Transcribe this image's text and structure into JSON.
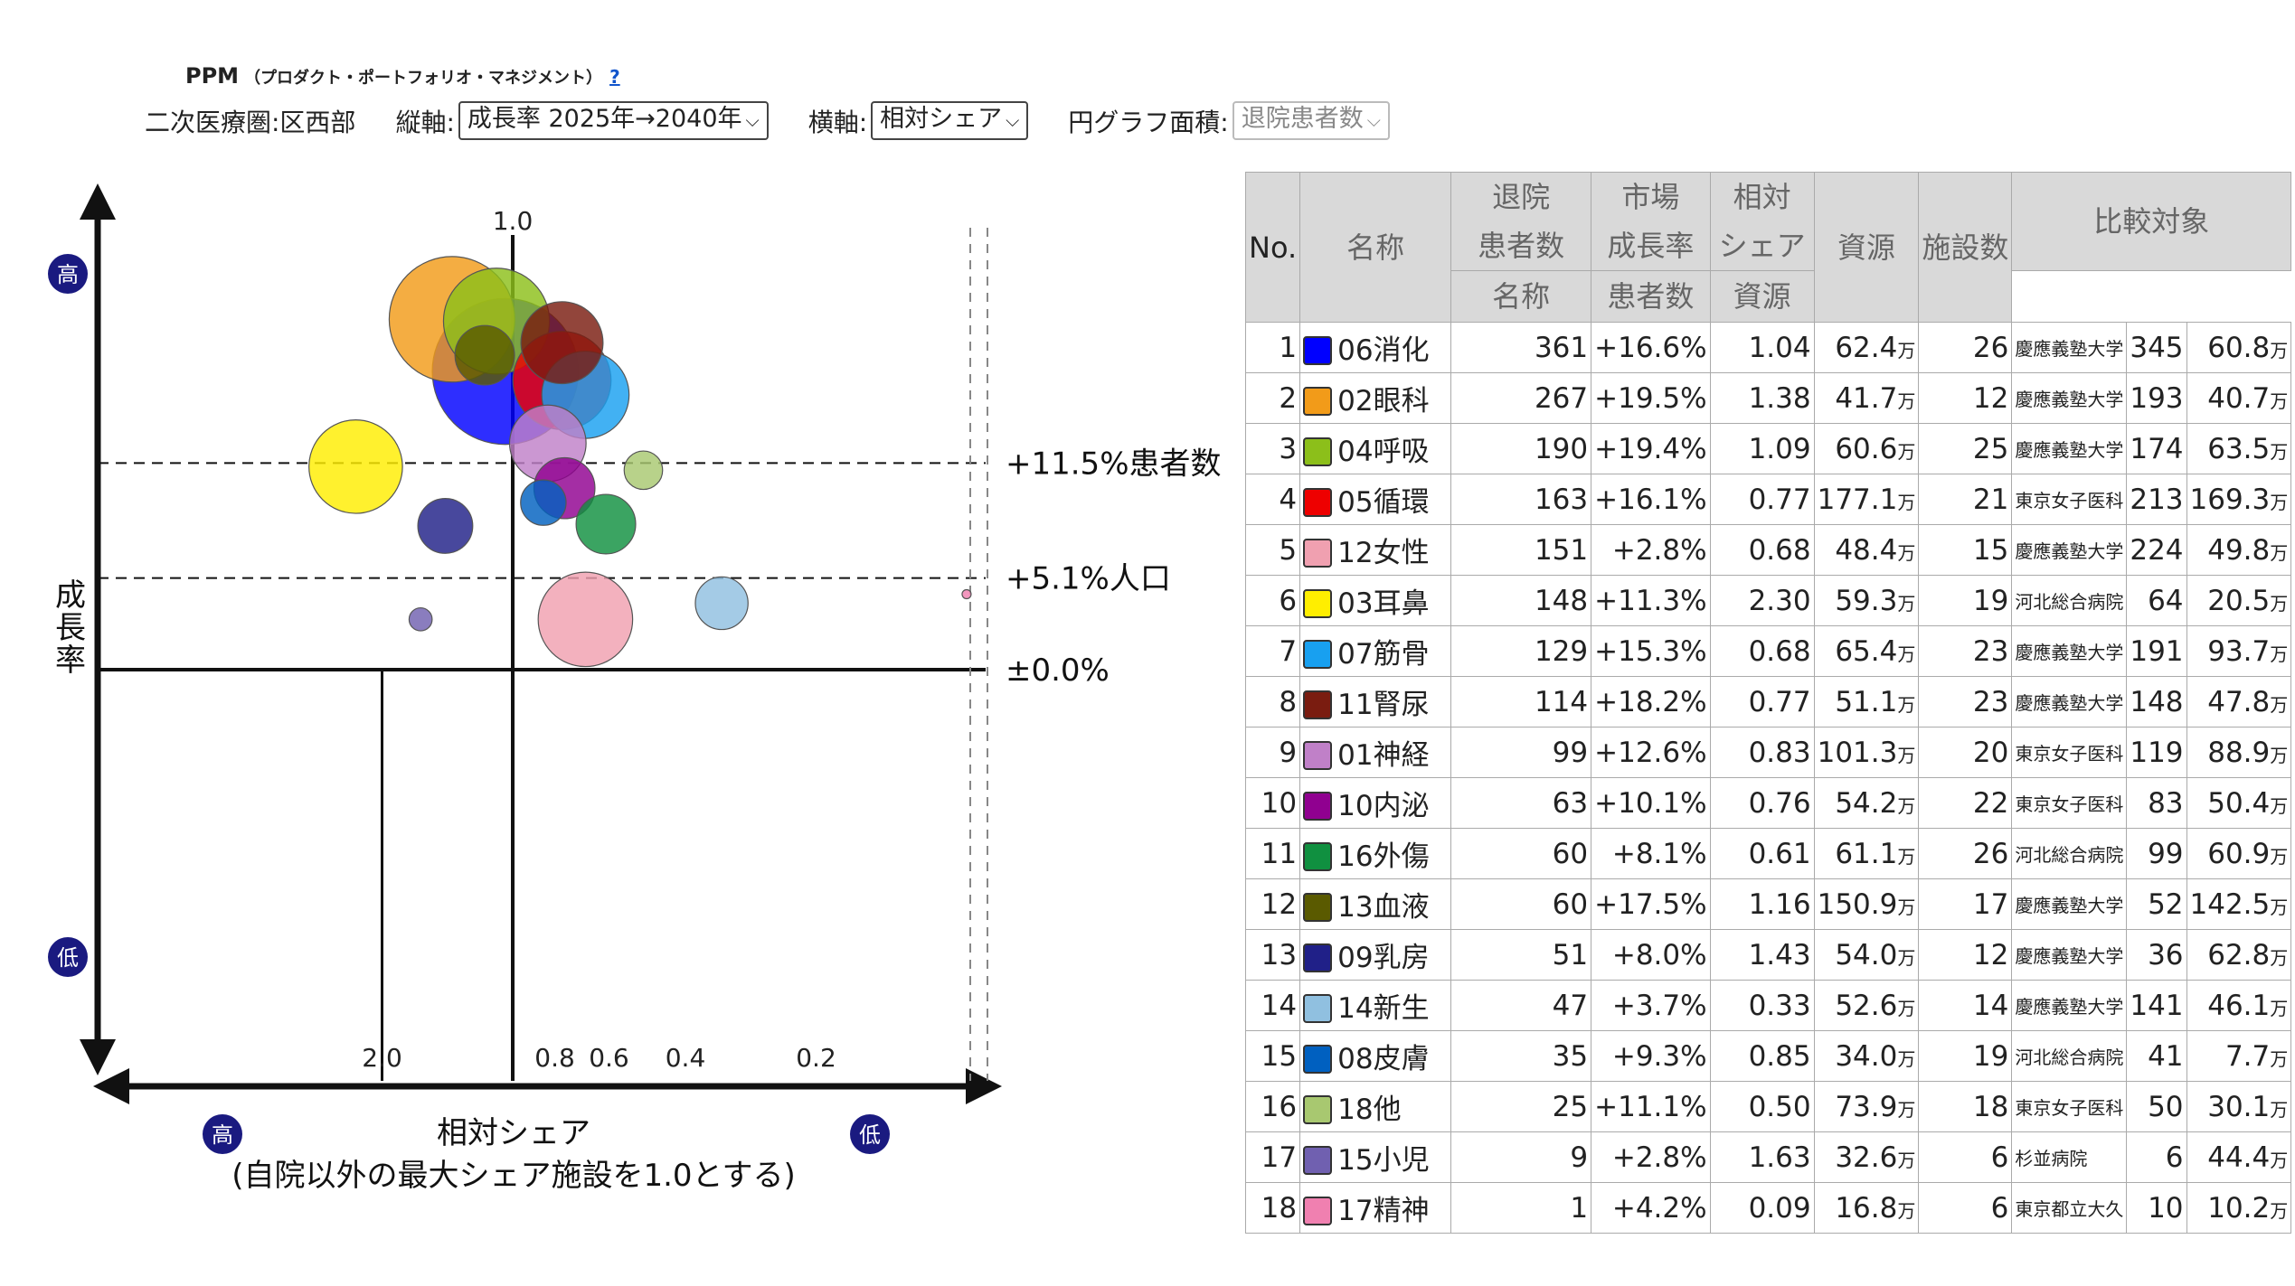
{
  "header": {
    "title": "PPM",
    "subtitle": "（プロダクト・ポートフォリオ・マネジメント）",
    "help_label": "?"
  },
  "controls": {
    "area_label": "二次医療圏:区西部",
    "y_axis_label": "縦軸:",
    "y_axis_value": "成長率 2025年→2040年",
    "x_axis_label": "横軸:",
    "x_axis_value": "相対シェア",
    "size_label": "円グラフ面積:",
    "size_value": "退院患者数"
  },
  "chart_data": {
    "type": "scatter",
    "ylabel": "成長率",
    "xlabel": "相対シェア",
    "xlabel_note": "(自院以外の最大シェア施設を1.0とする)",
    "x_direction": "reversed",
    "x_ticks": [
      "1.0",
      "2.0",
      "0.8",
      "0.6",
      "0.4",
      "0.2"
    ],
    "y_high_label": "高",
    "y_low_label": "低",
    "x_high_label": "高",
    "x_low_label": "低",
    "reference_lines": [
      {
        "label": "+11.5%患者数",
        "y": 11.5
      },
      {
        "label": "+5.1%人口",
        "y": 5.1
      },
      {
        "label": "±0.0%",
        "y": 0.0
      }
    ],
    "bubbles": [
      {
        "name": "06消化",
        "x": 1.04,
        "y": 16.6,
        "size": 361,
        "color": "#0000ff"
      },
      {
        "name": "02眼科",
        "x": 1.38,
        "y": 19.5,
        "size": 267,
        "color": "#f29b19"
      },
      {
        "name": "04呼吸",
        "x": 1.09,
        "y": 19.4,
        "size": 190,
        "color": "#8cbf1a"
      },
      {
        "name": "05循環",
        "x": 0.77,
        "y": 16.1,
        "size": 163,
        "color": "#ee0000"
      },
      {
        "name": "12女性",
        "x": 0.68,
        "y": 2.8,
        "size": 151,
        "color": "#f0a0b0"
      },
      {
        "name": "03耳鼻",
        "x": 2.3,
        "y": 11.3,
        "size": 148,
        "color": "#ffee00"
      },
      {
        "name": "07筋骨",
        "x": 0.68,
        "y": 15.3,
        "size": 129,
        "color": "#18a0f0"
      },
      {
        "name": "11腎尿",
        "x": 0.77,
        "y": 18.2,
        "size": 114,
        "color": "#7a1c10"
      },
      {
        "name": "01神経",
        "x": 0.83,
        "y": 12.6,
        "size": 99,
        "color": "#c080c8"
      },
      {
        "name": "10内泌",
        "x": 0.76,
        "y": 10.1,
        "size": 63,
        "color": "#900090"
      },
      {
        "name": "16外傷",
        "x": 0.61,
        "y": 8.1,
        "size": 60,
        "color": "#109040"
      },
      {
        "name": "13血液",
        "x": 1.16,
        "y": 17.5,
        "size": 60,
        "color": "#5a5a00"
      },
      {
        "name": "09乳房",
        "x": 1.43,
        "y": 8.0,
        "size": 51,
        "color": "#202088"
      },
      {
        "name": "14新生",
        "x": 0.33,
        "y": 3.7,
        "size": 47,
        "color": "#90c0e0"
      },
      {
        "name": "08皮膚",
        "x": 0.85,
        "y": 9.3,
        "size": 35,
        "color": "#0060c0"
      },
      {
        "name": "18他",
        "x": 0.5,
        "y": 11.1,
        "size": 25,
        "color": "#a8c870"
      },
      {
        "name": "15小児",
        "x": 1.63,
        "y": 2.8,
        "size": 9,
        "color": "#7060b0"
      },
      {
        "name": "17精神",
        "x": 0.09,
        "y": 4.2,
        "size": 1,
        "color": "#f080b0"
      }
    ]
  },
  "table": {
    "headers": {
      "no": "No.",
      "name": "名称",
      "patients_1": "退院",
      "patients_2": "患者数",
      "growth_1": "市場",
      "growth_2": "成長率",
      "share_1": "相対",
      "share_2": "シェア",
      "resource": "資源",
      "facilities": "施設数",
      "compare": "比較対象",
      "compare_name": "名称",
      "compare_patients": "患者数",
      "compare_resource": "資源"
    },
    "unit": "万",
    "rows": [
      {
        "no": "1",
        "name": "06消化",
        "color": "#0000ff",
        "patients": "361",
        "growth": "+16.6%",
        "share": "1.04",
        "resource": "62.4",
        "facilities": "26",
        "comp_name": "慶應義塾大学",
        "comp_patients": "345",
        "comp_resource": "60.8"
      },
      {
        "no": "2",
        "name": "02眼科",
        "color": "#f29b19",
        "patients": "267",
        "growth": "+19.5%",
        "share": "1.38",
        "resource": "41.7",
        "facilities": "12",
        "comp_name": "慶應義塾大学",
        "comp_patients": "193",
        "comp_resource": "40.7"
      },
      {
        "no": "3",
        "name": "04呼吸",
        "color": "#8cbf1a",
        "patients": "190",
        "growth": "+19.4%",
        "share": "1.09",
        "resource": "60.6",
        "facilities": "25",
        "comp_name": "慶應義塾大学",
        "comp_patients": "174",
        "comp_resource": "63.5"
      },
      {
        "no": "4",
        "name": "05循環",
        "color": "#ee0000",
        "patients": "163",
        "growth": "+16.1%",
        "share": "0.77",
        "resource": "177.1",
        "facilities": "21",
        "comp_name": "東京女子医科",
        "comp_patients": "213",
        "comp_resource": "169.3"
      },
      {
        "no": "5",
        "name": "12女性",
        "color": "#f0a0b0",
        "patients": "151",
        "growth": "+2.8%",
        "share": "0.68",
        "resource": "48.4",
        "facilities": "15",
        "comp_name": "慶應義塾大学",
        "comp_patients": "224",
        "comp_resource": "49.8"
      },
      {
        "no": "6",
        "name": "03耳鼻",
        "color": "#ffee00",
        "patients": "148",
        "growth": "+11.3%",
        "share": "2.30",
        "resource": "59.3",
        "facilities": "19",
        "comp_name": "河北総合病院",
        "comp_patients": "64",
        "comp_resource": "20.5"
      },
      {
        "no": "7",
        "name": "07筋骨",
        "color": "#18a0f0",
        "patients": "129",
        "growth": "+15.3%",
        "share": "0.68",
        "resource": "65.4",
        "facilities": "23",
        "comp_name": "慶應義塾大学",
        "comp_patients": "191",
        "comp_resource": "93.7"
      },
      {
        "no": "8",
        "name": "11腎尿",
        "color": "#7a1c10",
        "patients": "114",
        "growth": "+18.2%",
        "share": "0.77",
        "resource": "51.1",
        "facilities": "23",
        "comp_name": "慶應義塾大学",
        "comp_patients": "148",
        "comp_resource": "47.8"
      },
      {
        "no": "9",
        "name": "01神経",
        "color": "#c080c8",
        "patients": "99",
        "growth": "+12.6%",
        "share": "0.83",
        "resource": "101.3",
        "facilities": "20",
        "comp_name": "東京女子医科",
        "comp_patients": "119",
        "comp_resource": "88.9"
      },
      {
        "no": "10",
        "name": "10内泌",
        "color": "#900090",
        "patients": "63",
        "growth": "+10.1%",
        "share": "0.76",
        "resource": "54.2",
        "facilities": "22",
        "comp_name": "東京女子医科",
        "comp_patients": "83",
        "comp_resource": "50.4"
      },
      {
        "no": "11",
        "name": "16外傷",
        "color": "#109040",
        "patients": "60",
        "growth": "+8.1%",
        "share": "0.61",
        "resource": "61.1",
        "facilities": "26",
        "comp_name": "河北総合病院",
        "comp_patients": "99",
        "comp_resource": "60.9"
      },
      {
        "no": "12",
        "name": "13血液",
        "color": "#5a5a00",
        "patients": "60",
        "growth": "+17.5%",
        "share": "1.16",
        "resource": "150.9",
        "facilities": "17",
        "comp_name": "慶應義塾大学",
        "comp_patients": "52",
        "comp_resource": "142.5"
      },
      {
        "no": "13",
        "name": "09乳房",
        "color": "#202088",
        "patients": "51",
        "growth": "+8.0%",
        "share": "1.43",
        "resource": "54.0",
        "facilities": "12",
        "comp_name": "慶應義塾大学",
        "comp_patients": "36",
        "comp_resource": "62.8"
      },
      {
        "no": "14",
        "name": "14新生",
        "color": "#90c0e0",
        "patients": "47",
        "growth": "+3.7%",
        "share": "0.33",
        "resource": "52.6",
        "facilities": "14",
        "comp_name": "慶應義塾大学",
        "comp_patients": "141",
        "comp_resource": "46.1"
      },
      {
        "no": "15",
        "name": "08皮膚",
        "color": "#0060c0",
        "patients": "35",
        "growth": "+9.3%",
        "share": "0.85",
        "resource": "34.0",
        "facilities": "19",
        "comp_name": "河北総合病院",
        "comp_patients": "41",
        "comp_resource": "7.7"
      },
      {
        "no": "16",
        "name": "18他",
        "color": "#a8c870",
        "patients": "25",
        "growth": "+11.1%",
        "share": "0.50",
        "resource": "73.9",
        "facilities": "18",
        "comp_name": "東京女子医科",
        "comp_patients": "50",
        "comp_resource": "30.1"
      },
      {
        "no": "17",
        "name": "15小児",
        "color": "#7060b0",
        "patients": "9",
        "growth": "+2.8%",
        "share": "1.63",
        "resource": "32.6",
        "facilities": "6",
        "comp_name": "杉並病院",
        "comp_patients": "6",
        "comp_resource": "44.4"
      },
      {
        "no": "18",
        "name": "17精神",
        "color": "#f080b0",
        "patients": "1",
        "growth": "+4.2%",
        "share": "0.09",
        "resource": "16.8",
        "facilities": "6",
        "comp_name": "東京都立大久",
        "comp_patients": "10",
        "comp_resource": "10.2"
      }
    ]
  }
}
